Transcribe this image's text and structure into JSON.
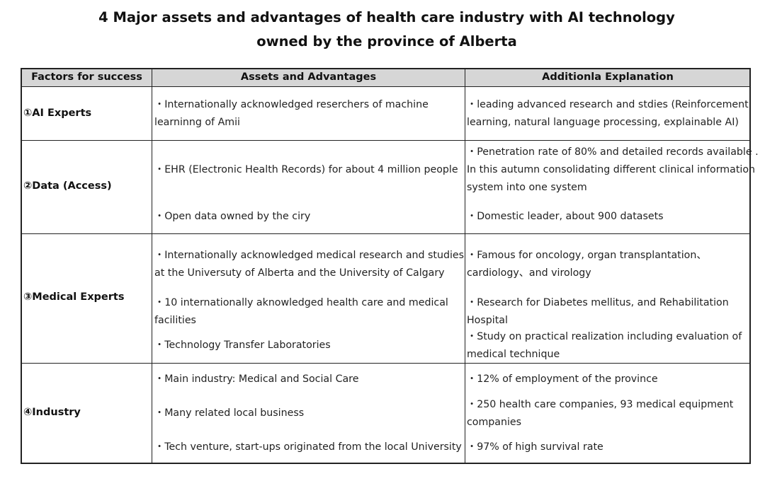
{
  "title": {
    "line1": "4 Major assets and advantages of health care industry with AI technology",
    "line2": "owned by the province of Alberta"
  },
  "table": {
    "headers": [
      "Factors for success",
      "Assets and Advantages",
      "Additionla Explanation"
    ],
    "rows": [
      {
        "factor": "①AI Experts",
        "assets": [
          "・Internationally acknowledged reserchers of machine",
          "learninng                   of Amii"
        ],
        "explanation": [
          "・leading advanced research and stdies (Reinforcement",
          "learning, natural language processing, explainable AI)"
        ]
      },
      {
        "factor": "②Data (Access)",
        "assets": [
          "・EHR (Electronic Health Records) for about 4 million people",
          "・Open data owned by the ciry"
        ],
        "explanation": [
          "・Penetration rate of 80%    and detailed records available .",
          "In this autumn consolidating different clinical information",
          "system into one system",
          "・Domestic leader, about 900 datasets"
        ]
      },
      {
        "factor": "③Medical Experts",
        "assets": [
          "・Internationally acknowledged medical research and studies",
          "at the Universuty of Alberta and the University of Calgary",
          "・10 internationally aknowledged health care and medical",
          "facilities",
          "・Technology Transfer Laboratories"
        ],
        "explanation": [
          "・Famous for oncology, organ transplantation、",
          "cardiology、and virology",
          "・Research for Diabetes mellitus, and Rehabilitation",
          "Hospital",
          "・Study on practical realization including evaluation of",
          "medical technique"
        ]
      },
      {
        "factor": "④Industry",
        "assets": [
          "・Main industry: Medical and Social Care",
          "・Many related local business",
          "・Tech venture, start-ups originated from the local University"
        ],
        "explanation": [
          "・12% of employment of the province",
          "・250 health care companies, 93 medical equipment",
          "companies",
          "・97% of high survival rate"
        ]
      }
    ]
  }
}
